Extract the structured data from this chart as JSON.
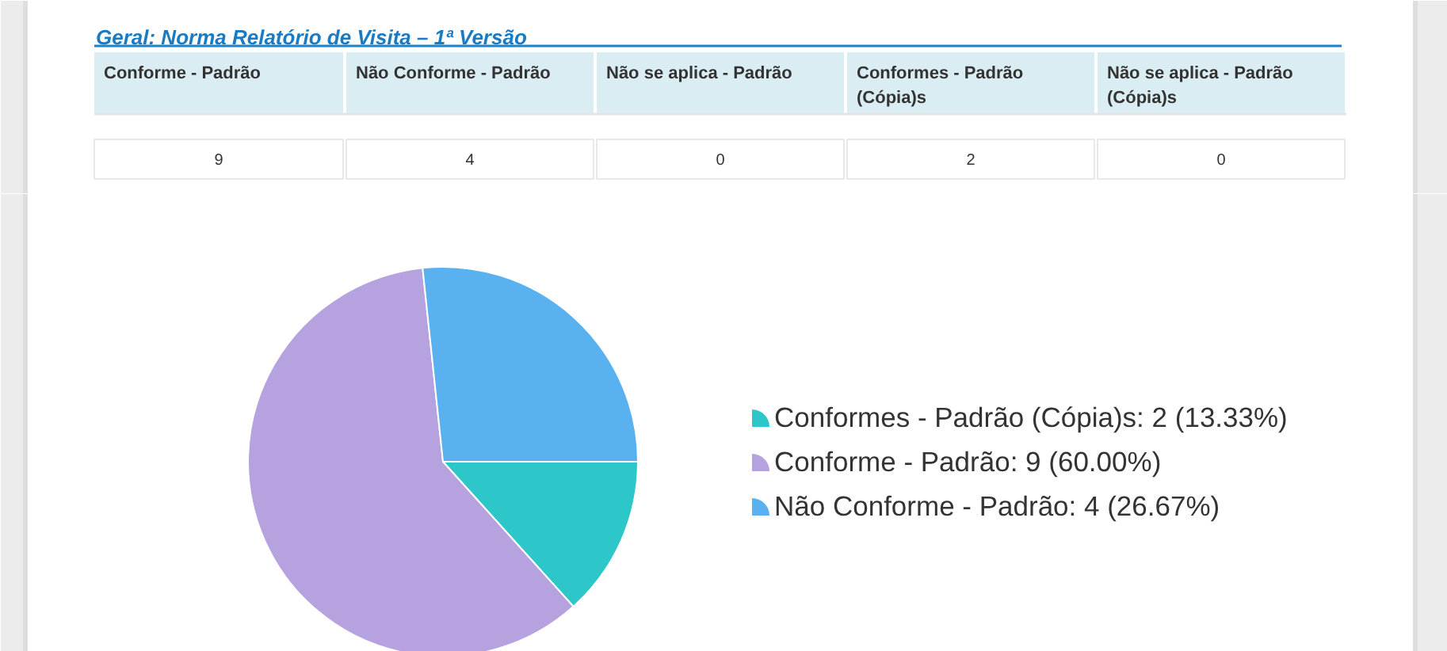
{
  "chart_data": [
    {
      "type": "other",
      "title": "Geral: Norma Relatório de Visita – 1ª Versão",
      "categories": [
        "Conforme - Padrão",
        "Não Conforme - Padrão",
        "Não se aplica - Padrão",
        "Conformes - Padrão (Cópia)s",
        "Não se aplica - Padrão (Cópia)s"
      ],
      "values": [
        9,
        4,
        0,
        2,
        0
      ],
      "data_labels": true
    },
    {
      "type": "pie",
      "categories": [
        "Conformes - Padrão (Cópia)s: 2 (13.33%)",
        "Conforme - Padrão: 9 (60.00%)",
        "Não Conforme - Padrão: 4 (26.67%)"
      ],
      "values": [
        2,
        9,
        4
      ],
      "colors": [
        "#2ec7c9",
        "#b6a2de",
        "#5ab1ef"
      ],
      "legend": "right"
    }
  ]
}
